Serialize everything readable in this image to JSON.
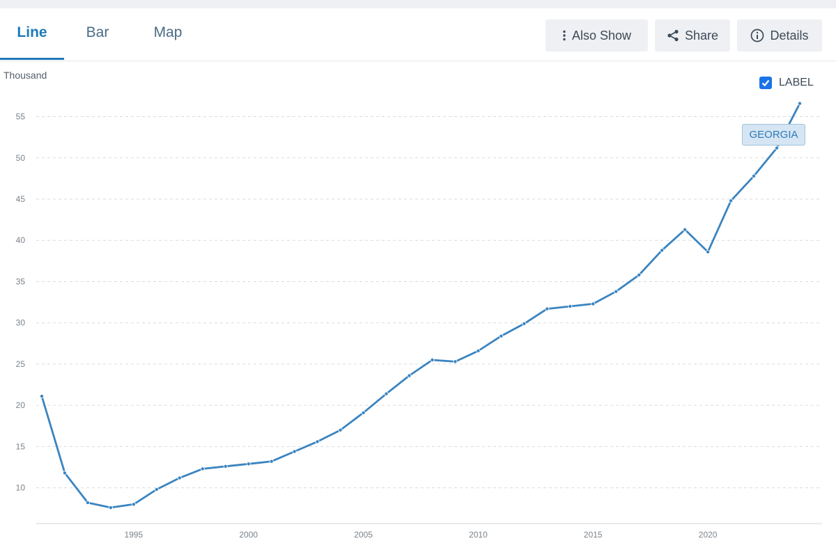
{
  "tabs": [
    {
      "label": "Line"
    },
    {
      "label": "Bar"
    },
    {
      "label": "Map"
    }
  ],
  "toolbar": {
    "also_show": "Also Show",
    "share": "Share",
    "details": "Details"
  },
  "label_toggle": {
    "text": "LABEL",
    "checked": true
  },
  "colors": {
    "accent": "#1f7ab8",
    "series": "#3a84c0"
  },
  "icons": {
    "also_show": "vertical-dots-icon",
    "share": "share-icon",
    "details": "info-icon",
    "checkbox": "checkmark-icon"
  },
  "chart_data": {
    "type": "line",
    "ylabel": "Thousand",
    "ylim": [
      6,
      58
    ],
    "yticks": [
      10,
      15,
      20,
      25,
      30,
      35,
      40,
      45,
      50,
      55
    ],
    "xlim": [
      1991,
      2024
    ],
    "xticks": [
      1995,
      2000,
      2005,
      2010,
      2015,
      2020
    ],
    "grid": true,
    "series": [
      {
        "name": "GEORGIA",
        "x": [
          1991,
          1992,
          1993,
          1994,
          1995,
          1996,
          1997,
          1998,
          1999,
          2000,
          2001,
          2002,
          2003,
          2004,
          2005,
          2006,
          2007,
          2008,
          2009,
          2010,
          2011,
          2012,
          2013,
          2014,
          2015,
          2016,
          2017,
          2018,
          2019,
          2020,
          2021,
          2022,
          2023,
          2024
        ],
        "values": [
          21.1,
          11.8,
          8.2,
          7.6,
          8.0,
          9.8,
          11.2,
          12.3,
          12.6,
          12.9,
          13.2,
          14.4,
          15.6,
          17.0,
          19.1,
          21.4,
          23.6,
          25.5,
          25.3,
          26.6,
          28.4,
          29.9,
          31.7,
          32.0,
          32.3,
          33.8,
          35.8,
          38.8,
          41.3,
          38.6,
          44.8,
          47.8,
          51.2,
          56.6
        ]
      }
    ]
  }
}
